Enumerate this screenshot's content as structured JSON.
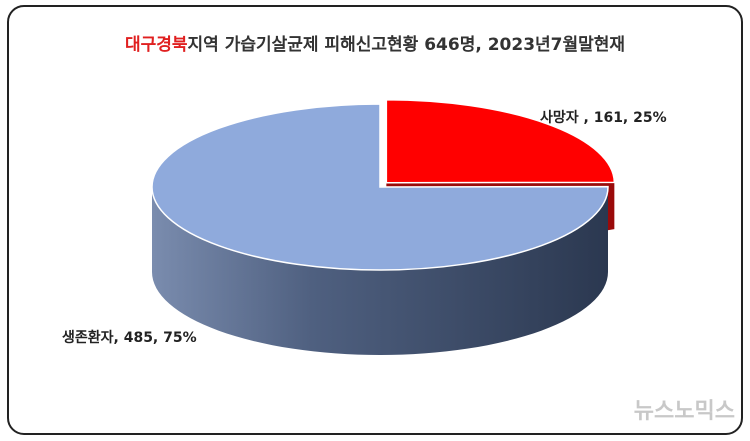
{
  "chart_data": {
    "type": "pie3d",
    "title_highlight": "대구경북",
    "title": "지역 가습기살균제 피해신고현황 646명, 2023년7월말현재",
    "categories": [
      "사망자",
      "생존환자"
    ],
    "values": [
      161,
      485
    ],
    "value_labels": [
      "사망자 , 161, 25%",
      "생존환자, 485, 75%"
    ],
    "colors": [
      "#ff0000",
      "#8faadc"
    ],
    "side_colors": [
      "#9a0a0a",
      "#3c4d6a"
    ],
    "watermark": "뉴스노믹스"
  }
}
